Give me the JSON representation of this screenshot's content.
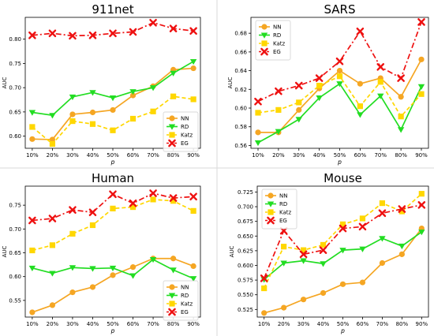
{
  "chart_data": [
    {
      "type": "line",
      "title": "911net",
      "xlabel": "p",
      "ylabel": "AUC",
      "categories": [
        "10%",
        "20%",
        "30%",
        "40%",
        "50%",
        "60%",
        "70%",
        "80%",
        "90%"
      ],
      "ylim": [
        0.575,
        0.845
      ],
      "yticks": [
        0.6,
        0.65,
        0.7,
        0.75,
        0.8
      ],
      "ytick_labels": [
        "0.60",
        "0.65",
        "0.70",
        "0.75",
        "0.80"
      ],
      "legend": "lower-right",
      "series": [
        {
          "name": "NN",
          "color": "#f5a623",
          "marker": "circle",
          "dash": "solid",
          "values": [
            0.594,
            0.593,
            0.645,
            0.649,
            0.654,
            0.684,
            0.703,
            0.737,
            0.74
          ]
        },
        {
          "name": "RD",
          "color": "#22dd22",
          "marker": "triangle-down",
          "dash": "solid",
          "values": [
            0.649,
            0.643,
            0.681,
            0.69,
            0.679,
            0.692,
            0.7,
            0.73,
            0.754
          ]
        },
        {
          "name": "Katz",
          "color": "#ffd700",
          "marker": "square",
          "dash": "dashed",
          "values": [
            0.619,
            0.584,
            0.631,
            0.625,
            0.612,
            0.636,
            0.651,
            0.682,
            0.676
          ]
        },
        {
          "name": "EG",
          "color": "#ee1111",
          "marker": "x",
          "dash": "dashdot",
          "values": [
            0.808,
            0.812,
            0.807,
            0.808,
            0.812,
            0.815,
            0.834,
            0.822,
            0.817
          ]
        }
      ]
    },
    {
      "type": "line",
      "title": "SARS",
      "xlabel": "p",
      "ylabel": "AUC",
      "categories": [
        "10%",
        "20%",
        "30%",
        "40%",
        "50%",
        "60%",
        "70%",
        "80%",
        "90%"
      ],
      "ylim": [
        0.557,
        0.697
      ],
      "yticks": [
        0.56,
        0.58,
        0.6,
        0.62,
        0.64,
        0.66,
        0.68
      ],
      "ytick_labels": [
        "0.56",
        "0.58",
        "0.60",
        "0.62",
        "0.64",
        "0.66",
        "0.68"
      ],
      "legend": "top-left",
      "series": [
        {
          "name": "NN",
          "color": "#f5a623",
          "marker": "circle",
          "dash": "solid",
          "values": [
            0.574,
            0.574,
            0.598,
            0.621,
            0.64,
            0.626,
            0.632,
            0.612,
            0.652
          ]
        },
        {
          "name": "RD",
          "color": "#22dd22",
          "marker": "triangle-down",
          "dash": "solid",
          "values": [
            0.563,
            0.575,
            0.588,
            0.611,
            0.626,
            0.593,
            0.613,
            0.577,
            0.623
          ]
        },
        {
          "name": "Katz",
          "color": "#ffd700",
          "marker": "square",
          "dash": "dashed",
          "values": [
            0.595,
            0.598,
            0.606,
            0.624,
            0.634,
            0.602,
            0.628,
            0.591,
            0.615
          ]
        },
        {
          "name": "EG",
          "color": "#ee1111",
          "marker": "x",
          "dash": "dashdot",
          "values": [
            0.607,
            0.618,
            0.624,
            0.632,
            0.65,
            0.682,
            0.644,
            0.632,
            0.692
          ]
        }
      ]
    },
    {
      "type": "line",
      "title": "Human",
      "xlabel": "p",
      "ylabel": "AUC",
      "categories": [
        "10%",
        "20%",
        "30%",
        "40%",
        "50%",
        "60%",
        "70%",
        "80%",
        "90%"
      ],
      "ylim": [
        0.515,
        0.79
      ],
      "yticks": [
        0.55,
        0.6,
        0.65,
        0.7,
        0.75
      ],
      "ytick_labels": [
        "0.55",
        "0.60",
        "0.65",
        "0.70",
        "0.75"
      ],
      "legend": "lower-right",
      "series": [
        {
          "name": "NN",
          "color": "#f5a623",
          "marker": "circle",
          "dash": "solid",
          "values": [
            0.525,
            0.54,
            0.567,
            0.578,
            0.603,
            0.62,
            0.638,
            0.638,
            0.622
          ]
        },
        {
          "name": "RD",
          "color": "#22dd22",
          "marker": "triangle-down",
          "dash": "solid",
          "values": [
            0.618,
            0.607,
            0.619,
            0.617,
            0.618,
            0.602,
            0.636,
            0.614,
            0.596
          ]
        },
        {
          "name": "Katz",
          "color": "#ffd700",
          "marker": "square",
          "dash": "dashed",
          "values": [
            0.655,
            0.666,
            0.69,
            0.708,
            0.743,
            0.746,
            0.762,
            0.759,
            0.738
          ]
        },
        {
          "name": "EG",
          "color": "#ee1111",
          "marker": "x",
          "dash": "dashdot",
          "values": [
            0.718,
            0.722,
            0.74,
            0.735,
            0.773,
            0.754,
            0.775,
            0.765,
            0.768
          ]
        }
      ]
    },
    {
      "type": "line",
      "title": "Mouse",
      "xlabel": "p",
      "ylabel": "AUC",
      "categories": [
        "10%",
        "20%",
        "30%",
        "40%",
        "50%",
        "60%",
        "70%",
        "80%",
        "90%"
      ],
      "ylim": [
        0.512,
        0.735
      ],
      "yticks": [
        0.525,
        0.55,
        0.575,
        0.6,
        0.625,
        0.65,
        0.675,
        0.7,
        0.725
      ],
      "ytick_labels": [
        "0.525",
        "0.550",
        "0.575",
        "0.600",
        "0.625",
        "0.650",
        "0.675",
        "0.700",
        "0.725"
      ],
      "legend": "top-left",
      "series": [
        {
          "name": "NN",
          "color": "#f5a623",
          "marker": "circle",
          "dash": "solid",
          "values": [
            0.519,
            0.528,
            0.542,
            0.553,
            0.568,
            0.571,
            0.604,
            0.619,
            0.663
          ]
        },
        {
          "name": "RD",
          "color": "#22dd22",
          "marker": "triangle-down",
          "dash": "solid",
          "values": [
            0.576,
            0.604,
            0.608,
            0.603,
            0.626,
            0.628,
            0.646,
            0.633,
            0.657
          ]
        },
        {
          "name": "Katz",
          "color": "#ffd700",
          "marker": "square",
          "dash": "dashed",
          "values": [
            0.561,
            0.632,
            0.626,
            0.635,
            0.67,
            0.68,
            0.706,
            0.692,
            0.722
          ]
        },
        {
          "name": "EG",
          "color": "#ee1111",
          "marker": "x",
          "dash": "dashdot",
          "values": [
            0.578,
            0.659,
            0.619,
            0.626,
            0.663,
            0.666,
            0.689,
            0.696,
            0.703
          ]
        }
      ]
    }
  ]
}
